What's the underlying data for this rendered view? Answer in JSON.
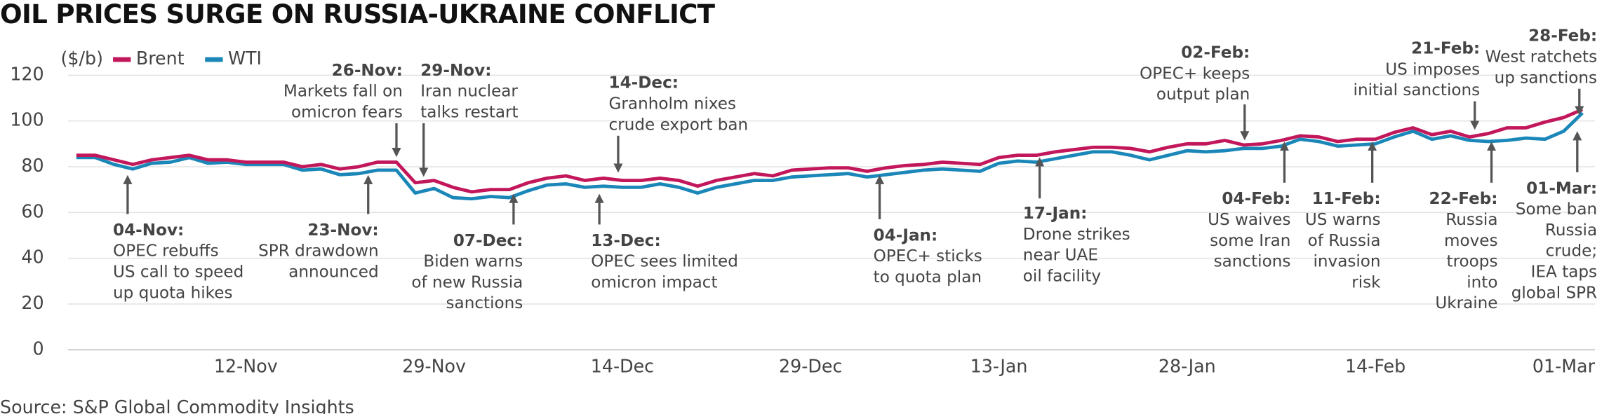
{
  "chart_data": {
    "type": "line",
    "title": "OIL PRICES SURGE ON RUSSIA-UKRAINE CONFLICT",
    "unit_label": "($/b)",
    "source": "Source: S&P Global Commodity Insights",
    "categories": [
      null,
      null,
      null,
      null,
      null,
      null,
      null,
      null,
      null,
      "12-Nov",
      null,
      null,
      null,
      null,
      null,
      null,
      null,
      null,
      null,
      "29-Nov",
      null,
      null,
      null,
      null,
      null,
      null,
      null,
      null,
      null,
      "14-Dec",
      null,
      null,
      null,
      null,
      null,
      null,
      null,
      null,
      null,
      "29-Dec",
      null,
      null,
      null,
      null,
      null,
      null,
      null,
      null,
      null,
      "13-Jan",
      null,
      null,
      null,
      null,
      null,
      null,
      null,
      null,
      null,
      "28-Jan",
      null,
      null,
      null,
      null,
      null,
      null,
      null,
      null,
      null,
      "14-Feb",
      null,
      null,
      null,
      null,
      null,
      null,
      null,
      null,
      null,
      "01-Mar",
      null
    ],
    "series": [
      {
        "name": "Brent",
        "color": "#c2185b",
        "values": [
          85,
          85,
          83,
          81,
          83,
          84,
          85,
          83,
          83,
          82,
          82,
          82,
          80,
          81,
          79,
          80,
          82,
          82,
          73,
          74,
          71,
          69,
          70,
          70,
          73,
          75,
          76,
          74,
          75,
          74,
          74,
          75,
          74,
          71.5,
          74,
          75.5,
          77,
          76,
          78.5,
          79,
          79.5,
          79.5,
          78,
          79.5,
          80.5,
          81,
          82,
          81.5,
          81,
          84,
          85,
          85,
          86.5,
          87.5,
          88.5,
          88.5,
          88,
          86.5,
          88.5,
          90,
          90,
          91.5,
          89.5,
          90,
          91.5,
          93.5,
          93,
          91,
          92,
          92,
          95,
          97,
          94,
          95.5,
          93,
          94.5,
          97,
          97,
          99.5,
          101.5,
          105
        ]
      },
      {
        "name": "WTI",
        "color": "#1b87b9",
        "values": [
          84,
          84,
          81,
          79,
          81.5,
          82,
          84,
          81.5,
          82,
          81,
          81,
          81,
          78.5,
          79,
          76.5,
          77,
          78.5,
          78.5,
          68.5,
          70.5,
          66.5,
          66,
          67,
          66.5,
          69.5,
          72,
          72.5,
          71,
          71.5,
          71,
          71,
          72.5,
          71,
          68.5,
          71,
          72.5,
          74,
          74,
          75.5,
          76,
          76.5,
          77,
          75.5,
          76.5,
          77.5,
          78.5,
          79,
          78.5,
          78,
          81.5,
          82.5,
          82,
          83.5,
          85,
          86.5,
          86.5,
          85,
          83,
          85,
          87,
          86.5,
          87,
          88,
          88,
          89,
          92,
          91,
          89,
          89.5,
          90,
          93,
          95.5,
          92,
          93.5,
          91.5,
          91,
          91.5,
          92.5,
          92,
          95.5,
          103.5
        ]
      }
    ],
    "ylim": [
      0,
      130
    ],
    "yticks": [
      0,
      20,
      40,
      60,
      80,
      100,
      120
    ],
    "grid": true,
    "annotations": [
      {
        "date": "04-Nov:",
        "lines": [
          "OPEC rebuffs",
          "US call to speed",
          "up quota hikes"
        ]
      },
      {
        "date": "23-Nov:",
        "lines": [
          "SPR drawdown",
          "announced"
        ]
      },
      {
        "date": "26-Nov:",
        "lines": [
          "Markets fall on",
          "omicron fears"
        ]
      },
      {
        "date": "29-Nov:",
        "lines": [
          "Iran nuclear",
          "talks restart"
        ]
      },
      {
        "date": "07-Dec:",
        "lines": [
          "Biden warns",
          "of new Russia",
          "sanctions"
        ]
      },
      {
        "date": "13-Dec:",
        "lines": [
          "OPEC sees limited",
          "omicron impact"
        ]
      },
      {
        "date": "14-Dec:",
        "lines": [
          "Granholm nixes",
          "crude export ban"
        ]
      },
      {
        "date": "04-Jan:",
        "lines": [
          "OPEC+ sticks",
          "to quota plan"
        ]
      },
      {
        "date": "17-Jan:",
        "lines": [
          "Drone strikes",
          "near UAE",
          "oil facility"
        ]
      },
      {
        "date": "02-Feb:",
        "lines": [
          "OPEC+ keeps",
          "output plan"
        ]
      },
      {
        "date": "04-Feb:",
        "lines": [
          "US waives",
          "some Iran",
          "sanctions"
        ]
      },
      {
        "date": "11-Feb:",
        "lines": [
          "US warns",
          "of Russia",
          "invasion",
          "risk"
        ]
      },
      {
        "date": "21-Feb:",
        "lines": [
          "US imposes",
          "initial sanctions"
        ]
      },
      {
        "date": "22-Feb:",
        "lines": [
          "Russia",
          "moves",
          "troops",
          "into",
          "Ukraine"
        ]
      },
      {
        "date": "28-Feb:",
        "lines": [
          "West ratchets",
          "up sanctions"
        ]
      },
      {
        "date": "01-Mar:",
        "lines": [
          "Some ban",
          "Russia",
          "crude;",
          "IEA taps",
          "global SPR"
        ]
      }
    ]
  }
}
